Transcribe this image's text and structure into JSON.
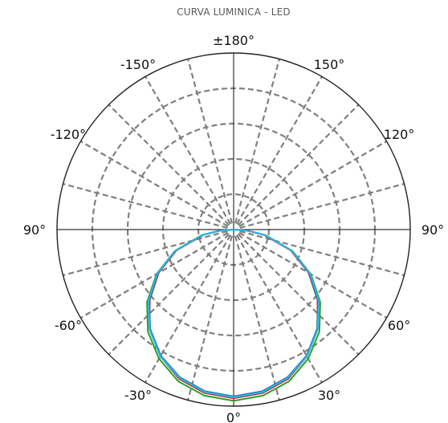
{
  "chart_data": {
    "type": "polar",
    "title": "CURVA LUMINICA - LED",
    "angle_labels": [
      {
        "deg": 0,
        "text": "0°"
      },
      {
        "deg": 30,
        "text": "30°"
      },
      {
        "deg": -30,
        "text": "-30°"
      },
      {
        "deg": 60,
        "text": "60°"
      },
      {
        "deg": -60,
        "text": "-60°"
      },
      {
        "deg": 90,
        "text": "90°"
      },
      {
        "deg": -90,
        "text": "90°"
      },
      {
        "deg": 120,
        "text": "120°"
      },
      {
        "deg": -120,
        "text": "-120°"
      },
      {
        "deg": 150,
        "text": "150°"
      },
      {
        "deg": -150,
        "text": "-150°"
      },
      {
        "deg": 180,
        "text": "±180°"
      }
    ],
    "radial_max": 1.0,
    "rings": [
      0.2,
      0.4,
      0.6,
      0.8
    ],
    "spoke_step_deg": 15,
    "grid": true,
    "series": [
      {
        "color": "#d7191c",
        "angles": [
          0,
          10,
          20,
          30,
          40,
          50,
          60,
          70,
          80,
          85,
          90
        ],
        "values": [
          0.955,
          0.94,
          0.9,
          0.83,
          0.74,
          0.62,
          0.49,
          0.345,
          0.175,
          0.08,
          0.0
        ]
      },
      {
        "color": "#2ca02c",
        "angles": [
          0,
          10,
          20,
          30,
          40,
          50,
          60,
          70,
          80,
          85,
          90
        ],
        "values": [
          0.97,
          0.955,
          0.915,
          0.845,
          0.755,
          0.64,
          0.505,
          0.355,
          0.185,
          0.09,
          0.0
        ]
      },
      {
        "color": "#1f77b4",
        "angles": [
          0,
          10,
          20,
          30,
          40,
          50,
          60,
          70,
          80,
          85,
          90
        ],
        "values": [
          0.945,
          0.93,
          0.89,
          0.825,
          0.735,
          0.625,
          0.495,
          0.35,
          0.18,
          0.085,
          0.0
        ]
      },
      {
        "color": "#29b6e8",
        "angles": [
          0,
          10,
          20,
          30,
          40,
          50,
          60,
          70,
          80,
          85,
          90
        ],
        "values": [
          0.95,
          0.935,
          0.895,
          0.83,
          0.74,
          0.63,
          0.5,
          0.352,
          0.182,
          0.087,
          0.0
        ]
      }
    ]
  }
}
